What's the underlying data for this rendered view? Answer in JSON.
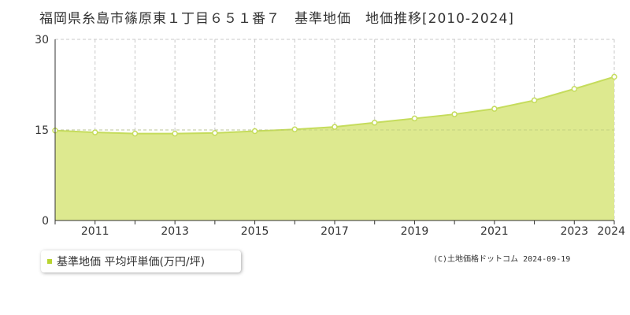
{
  "title": "福岡県糸島市篠原東１丁目６５１番７　基準地価　地価推移[2010-2024]",
  "credit": "(C)土地価格ドットコム 2024-09-19",
  "colors": {
    "fill": "#dde98f",
    "line": "#c5dc5c",
    "point_fill": "#ffffff",
    "grid": "#c8c8c8",
    "legend_marker": "#b8d430"
  },
  "chart_data": {
    "type": "area",
    "x": [
      2010,
      2011,
      2012,
      2013,
      2014,
      2015,
      2016,
      2017,
      2018,
      2019,
      2020,
      2021,
      2022,
      2023,
      2024
    ],
    "series": [
      {
        "name": "基準地価 平均坪単価(万円/坪)",
        "values": [
          14.9,
          14.6,
          14.4,
          14.4,
          14.5,
          14.8,
          15.1,
          15.5,
          16.2,
          16.9,
          17.6,
          18.5,
          19.9,
          21.8,
          23.8
        ]
      }
    ],
    "xticks": [
      "2011",
      "2013",
      "2015",
      "2017",
      "2019",
      "2021",
      "2023",
      "2024"
    ],
    "yticks": [
      "0",
      "15",
      "30"
    ],
    "ylim": [
      0,
      30
    ],
    "xlim": [
      2010,
      2024
    ],
    "grid": true,
    "legend": "bottom-left"
  }
}
